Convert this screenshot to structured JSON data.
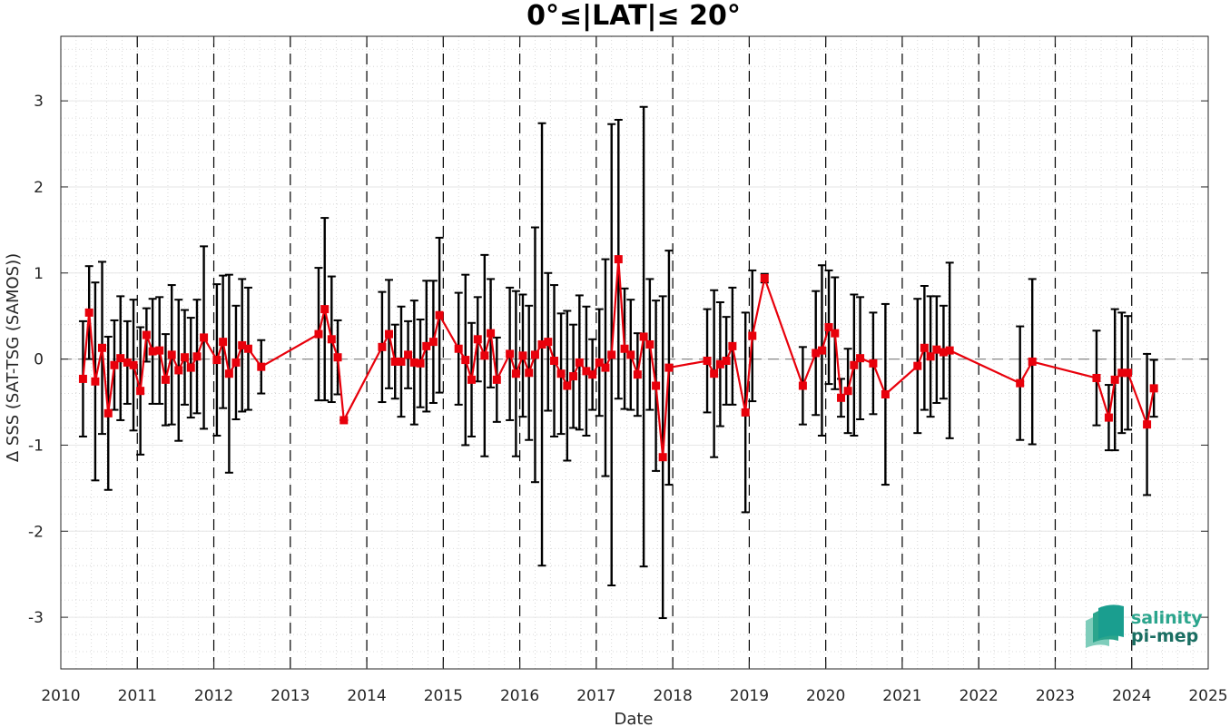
{
  "chart_data": {
    "type": "line",
    "title": "0°≤|LAT|≤ 20°",
    "xlabel": "Date",
    "ylabel": "Δ SSS (SAT-TSG (SAMOS))",
    "xlim": [
      2010,
      2025
    ],
    "ylim": [
      -3.6,
      3.75
    ],
    "x_ticks": [
      "2010",
      "2011",
      "2012",
      "2013",
      "2014",
      "2015",
      "2016",
      "2017",
      "2018",
      "2019",
      "2020",
      "2021",
      "2022",
      "2023",
      "2024",
      "2025"
    ],
    "y_ticks": [
      "-3",
      "-2",
      "-1",
      "0",
      "1",
      "2",
      "3"
    ],
    "grid": true,
    "minor_grid": true,
    "year_boundary_lines": "dashed vertical",
    "zero_line": "dashed gray",
    "series": [
      {
        "color": "#e8000b",
        "errorbar_color": "#000000",
        "marker": "square",
        "points": [
          {
            "x": 2010.29,
            "y": -0.23,
            "err": 0.67
          },
          {
            "x": 2010.37,
            "y": 0.54,
            "err": 0.54
          },
          {
            "x": 2010.45,
            "y": -0.26,
            "err": 1.15
          },
          {
            "x": 2010.54,
            "y": 0.13,
            "err": 1.0
          },
          {
            "x": 2010.62,
            "y": -0.63,
            "err": 0.89
          },
          {
            "x": 2010.7,
            "y": -0.07,
            "err": 0.52
          },
          {
            "x": 2010.78,
            "y": 0.01,
            "err": 0.72
          },
          {
            "x": 2010.87,
            "y": -0.04,
            "err": 0.48
          },
          {
            "x": 2010.95,
            "y": -0.07,
            "err": 0.76
          },
          {
            "x": 2011.04,
            "y": -0.37,
            "err": 0.74
          },
          {
            "x": 2011.12,
            "y": 0.28,
            "err": 0.31
          },
          {
            "x": 2011.2,
            "y": 0.09,
            "err": 0.61
          },
          {
            "x": 2011.29,
            "y": 0.1,
            "err": 0.62
          },
          {
            "x": 2011.37,
            "y": -0.24,
            "err": 0.53
          },
          {
            "x": 2011.45,
            "y": 0.05,
            "err": 0.81
          },
          {
            "x": 2011.54,
            "y": -0.13,
            "err": 0.82
          },
          {
            "x": 2011.62,
            "y": 0.02,
            "err": 0.55
          },
          {
            "x": 2011.7,
            "y": -0.1,
            "err": 0.58
          },
          {
            "x": 2011.78,
            "y": 0.03,
            "err": 0.66
          },
          {
            "x": 2011.87,
            "y": 0.25,
            "err": 1.06
          },
          {
            "x": 2012.04,
            "y": -0.01,
            "err": 0.88
          },
          {
            "x": 2012.12,
            "y": 0.2,
            "err": 0.77
          },
          {
            "x": 2012.2,
            "y": -0.17,
            "err": 1.15
          },
          {
            "x": 2012.29,
            "y": -0.04,
            "err": 0.66
          },
          {
            "x": 2012.37,
            "y": 0.16,
            "err": 0.77
          },
          {
            "x": 2012.45,
            "y": 0.12,
            "err": 0.71
          },
          {
            "x": 2012.62,
            "y": -0.09,
            "err": 0.31
          },
          {
            "x": 2013.37,
            "y": 0.29,
            "err": 0.77
          },
          {
            "x": 2013.45,
            "y": 0.58,
            "err": 1.06
          },
          {
            "x": 2013.54,
            "y": 0.23,
            "err": 0.73
          },
          {
            "x": 2013.62,
            "y": 0.02,
            "err": 0.43
          },
          {
            "x": 2013.7,
            "y": -0.71,
            "err": 0.0
          },
          {
            "x": 2014.2,
            "y": 0.14,
            "err": 0.64
          },
          {
            "x": 2014.29,
            "y": 0.29,
            "err": 0.63
          },
          {
            "x": 2014.37,
            "y": -0.03,
            "err": 0.43
          },
          {
            "x": 2014.45,
            "y": -0.03,
            "err": 0.64
          },
          {
            "x": 2014.54,
            "y": 0.05,
            "err": 0.39
          },
          {
            "x": 2014.62,
            "y": -0.04,
            "err": 0.72
          },
          {
            "x": 2014.7,
            "y": -0.05,
            "err": 0.51
          },
          {
            "x": 2014.78,
            "y": 0.15,
            "err": 0.76
          },
          {
            "x": 2014.87,
            "y": 0.2,
            "err": 0.71
          },
          {
            "x": 2014.95,
            "y": 0.51,
            "err": 0.9
          },
          {
            "x": 2015.2,
            "y": 0.12,
            "err": 0.65
          },
          {
            "x": 2015.29,
            "y": -0.01,
            "err": 0.99
          },
          {
            "x": 2015.37,
            "y": -0.24,
            "err": 0.66
          },
          {
            "x": 2015.45,
            "y": 0.23,
            "err": 0.49
          },
          {
            "x": 2015.54,
            "y": 0.04,
            "err": 1.17
          },
          {
            "x": 2015.62,
            "y": 0.3,
            "err": 0.63
          },
          {
            "x": 2015.7,
            "y": -0.24,
            "err": 0.49
          },
          {
            "x": 2015.87,
            "y": 0.06,
            "err": 0.77
          },
          {
            "x": 2015.95,
            "y": -0.17,
            "err": 0.96
          },
          {
            "x": 2016.04,
            "y": 0.04,
            "err": 0.71
          },
          {
            "x": 2016.12,
            "y": -0.16,
            "err": 0.78
          },
          {
            "x": 2016.2,
            "y": 0.05,
            "err": 1.48
          },
          {
            "x": 2016.29,
            "y": 0.17,
            "err": 2.57
          },
          {
            "x": 2016.37,
            "y": 0.2,
            "err": 0.8
          },
          {
            "x": 2016.45,
            "y": -0.02,
            "err": 0.88
          },
          {
            "x": 2016.54,
            "y": -0.17,
            "err": 0.7
          },
          {
            "x": 2016.62,
            "y": -0.31,
            "err": 0.87
          },
          {
            "x": 2016.7,
            "y": -0.2,
            "err": 0.6
          },
          {
            "x": 2016.78,
            "y": -0.04,
            "err": 0.78
          },
          {
            "x": 2016.87,
            "y": -0.14,
            "err": 0.75
          },
          {
            "x": 2016.95,
            "y": -0.18,
            "err": 0.41
          },
          {
            "x": 2017.04,
            "y": -0.04,
            "err": 0.62
          },
          {
            "x": 2017.12,
            "y": -0.1,
            "err": 1.26
          },
          {
            "x": 2017.2,
            "y": 0.05,
            "err": 2.68
          },
          {
            "x": 2017.29,
            "y": 1.16,
            "err": 1.62
          },
          {
            "x": 2017.37,
            "y": 0.12,
            "err": 0.7
          },
          {
            "x": 2017.45,
            "y": 0.05,
            "err": 0.64
          },
          {
            "x": 2017.54,
            "y": -0.18,
            "err": 0.48
          },
          {
            "x": 2017.62,
            "y": 0.26,
            "err": 2.67
          },
          {
            "x": 2017.7,
            "y": 0.17,
            "err": 0.76
          },
          {
            "x": 2017.78,
            "y": -0.31,
            "err": 0.99
          },
          {
            "x": 2017.87,
            "y": -1.14,
            "err": 1.87
          },
          {
            "x": 2017.95,
            "y": -0.1,
            "err": 1.36
          },
          {
            "x": 2018.45,
            "y": -0.02,
            "err": 0.6
          },
          {
            "x": 2018.54,
            "y": -0.17,
            "err": 0.97
          },
          {
            "x": 2018.62,
            "y": -0.06,
            "err": 0.72
          },
          {
            "x": 2018.7,
            "y": -0.02,
            "err": 0.51
          },
          {
            "x": 2018.78,
            "y": 0.15,
            "err": 0.68
          },
          {
            "x": 2018.95,
            "y": -0.62,
            "err": 1.16
          },
          {
            "x": 2019.04,
            "y": 0.27,
            "err": 0.76
          },
          {
            "x": 2019.2,
            "y": 0.94,
            "err": 0.05
          },
          {
            "x": 2019.7,
            "y": -0.31,
            "err": 0.45
          },
          {
            "x": 2019.87,
            "y": 0.07,
            "err": 0.72
          },
          {
            "x": 2019.95,
            "y": 0.1,
            "err": 0.99
          },
          {
            "x": 2020.04,
            "y": 0.37,
            "err": 0.66
          },
          {
            "x": 2020.12,
            "y": 0.3,
            "err": 0.65
          },
          {
            "x": 2020.2,
            "y": -0.45,
            "err": 0.22
          },
          {
            "x": 2020.29,
            "y": -0.37,
            "err": 0.49
          },
          {
            "x": 2020.37,
            "y": -0.07,
            "err": 0.82
          },
          {
            "x": 2020.45,
            "y": 0.01,
            "err": 0.71
          },
          {
            "x": 2020.62,
            "y": -0.05,
            "err": 0.59
          },
          {
            "x": 2020.78,
            "y": -0.41,
            "err": 1.05
          },
          {
            "x": 2021.2,
            "y": -0.08,
            "err": 0.78
          },
          {
            "x": 2021.29,
            "y": 0.13,
            "err": 0.72
          },
          {
            "x": 2021.37,
            "y": 0.03,
            "err": 0.7
          },
          {
            "x": 2021.45,
            "y": 0.11,
            "err": 0.62
          },
          {
            "x": 2021.54,
            "y": 0.08,
            "err": 0.54
          },
          {
            "x": 2021.62,
            "y": 0.1,
            "err": 1.02
          },
          {
            "x": 2022.54,
            "y": -0.28,
            "err": 0.66
          },
          {
            "x": 2022.7,
            "y": -0.03,
            "err": 0.96
          },
          {
            "x": 2023.54,
            "y": -0.22,
            "err": 0.55
          },
          {
            "x": 2023.7,
            "y": -0.68,
            "err": 0.38
          },
          {
            "x": 2023.78,
            "y": -0.24,
            "err": 0.82
          },
          {
            "x": 2023.87,
            "y": -0.16,
            "err": 0.7
          },
          {
            "x": 2023.95,
            "y": -0.16,
            "err": 0.66
          },
          {
            "x": 2024.2,
            "y": -0.76,
            "err": 0.82
          },
          {
            "x": 2024.29,
            "y": -0.34,
            "err": 0.33
          }
        ]
      }
    ]
  },
  "logo": {
    "line1": "salinity",
    "line2": "pi-mep",
    "colors": [
      "#1a9e8f",
      "#2ca58d",
      "#7fcdbb"
    ]
  }
}
